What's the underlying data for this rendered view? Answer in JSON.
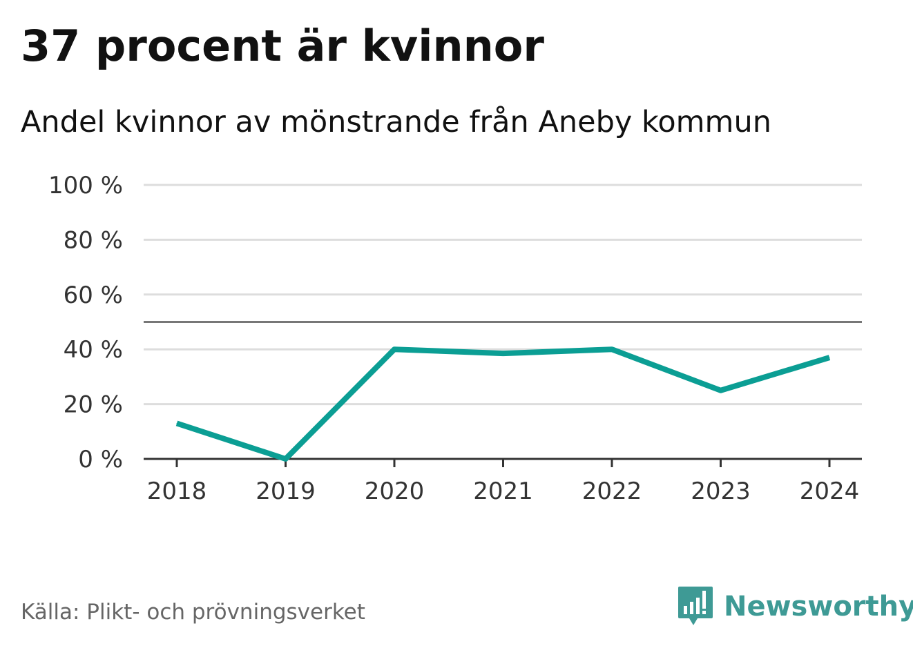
{
  "header": {
    "title": "37 procent är kvinnor",
    "subtitle": "Andel kvinnor av mönstrande från Aneby kommun"
  },
  "footer": {
    "source": "Källa: Plikt- och prövningsverket",
    "brand": "Newsworthy",
    "brand_icon": "bar-chart-speech-bubble-icon"
  },
  "colors": {
    "line": "#0b9e94",
    "grid": "#dddddd",
    "reference": "#777777",
    "axis": "#333333",
    "brand": "#3e9a95"
  },
  "chart_data": {
    "type": "line",
    "x": [
      "2018",
      "2019",
      "2020",
      "2021",
      "2022",
      "2023",
      "2024"
    ],
    "series": [
      {
        "values": [
          13,
          0,
          40,
          38.5,
          40,
          25,
          37
        ]
      }
    ],
    "ylim": [
      0,
      100
    ],
    "yticks": [
      0,
      20,
      40,
      60,
      80,
      100
    ],
    "ytick_labels": [
      "0 %",
      "20 %",
      "40 %",
      "60 %",
      "80 %",
      "100 %"
    ],
    "reference_line": 50,
    "grid": true,
    "legend": "none"
  }
}
